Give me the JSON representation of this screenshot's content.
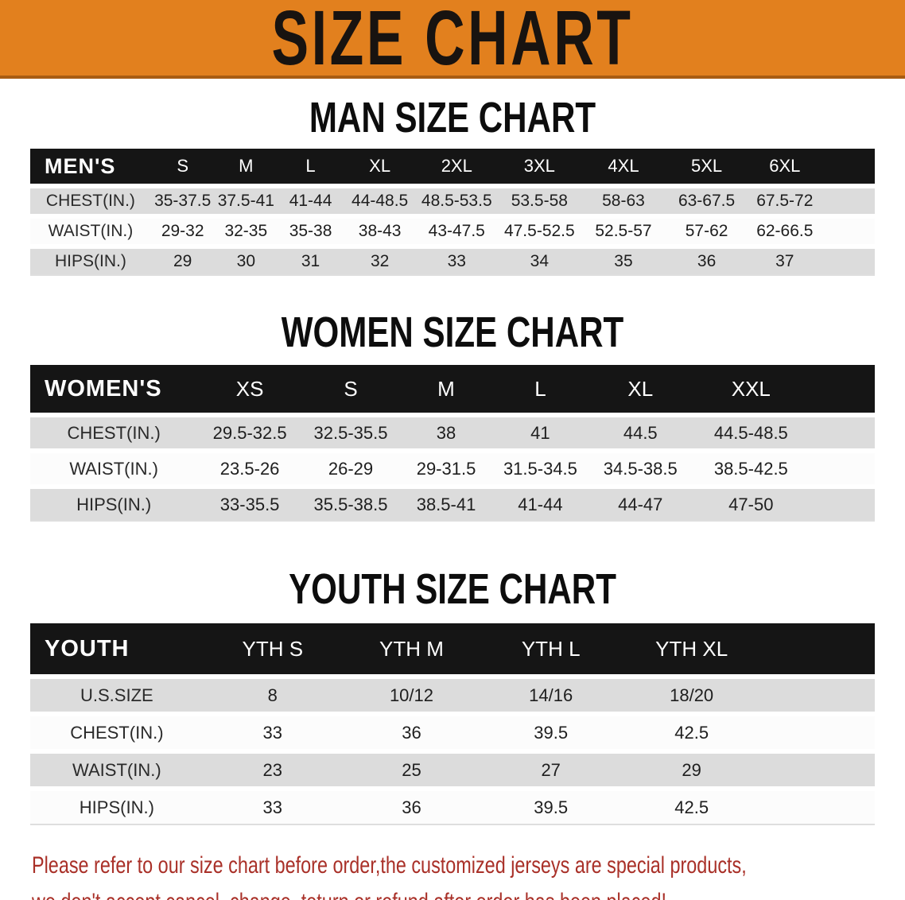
{
  "banner": {
    "title": "SIZE CHART"
  },
  "colors": {
    "banner_bg": "#e2801e",
    "table_header_bg": "#151515",
    "row_stripe_gray": "#dcdcdc",
    "notice_text_red": "#a93028"
  },
  "sections": [
    {
      "heading": "MAN SIZE CHART",
      "header_label": "MEN'S",
      "columns": [
        "S",
        "M",
        "L",
        "XL",
        "2XL",
        "3XL",
        "4XL",
        "5XL",
        "6XL"
      ],
      "rows": [
        {
          "label": "CHEST(IN.)",
          "values": [
            "35-37.5",
            "37.5-41",
            "41-44",
            "44-48.5",
            "48.5-53.5",
            "53.5-58",
            "58-63",
            "63-67.5",
            "67.5-72"
          ]
        },
        {
          "label": "WAIST(IN.)",
          "values": [
            "29-32",
            "32-35",
            "35-38",
            "38-43",
            "43-47.5",
            "47.5-52.5",
            "52.5-57",
            "57-62",
            "62-66.5"
          ]
        },
        {
          "label": "HIPS(IN.)",
          "values": [
            "29",
            "30",
            "31",
            "32",
            "33",
            "34",
            "35",
            "36",
            "37"
          ]
        }
      ]
    },
    {
      "heading": "WOMEN SIZE CHART",
      "header_label": "WOMEN'S",
      "columns": [
        "XS",
        "S",
        "M",
        "L",
        "XL",
        "XXL"
      ],
      "rows": [
        {
          "label": "CHEST(IN.)",
          "values": [
            "29.5-32.5",
            "32.5-35.5",
            "38",
            "41",
            "44.5",
            "44.5-48.5"
          ]
        },
        {
          "label": "WAIST(IN.)",
          "values": [
            "23.5-26",
            "26-29",
            "29-31.5",
            "31.5-34.5",
            "34.5-38.5",
            "38.5-42.5"
          ]
        },
        {
          "label": "HIPS(IN.)",
          "values": [
            "33-35.5",
            "35.5-38.5",
            "38.5-41",
            "41-44",
            "44-47",
            "47-50"
          ]
        }
      ]
    },
    {
      "heading": "YOUTH SIZE CHART",
      "header_label": "YOUTH",
      "columns": [
        "YTH S",
        "YTH M",
        "YTH L",
        "YTH XL"
      ],
      "rows": [
        {
          "label": "U.S.SIZE",
          "values": [
            "8",
            "10/12",
            "14/16",
            "18/20"
          ]
        },
        {
          "label": "CHEST(IN.)",
          "values": [
            "33",
            "36",
            "39.5",
            "42.5"
          ]
        },
        {
          "label": "WAIST(IN.)",
          "values": [
            "23",
            "25",
            "27",
            "29"
          ]
        },
        {
          "label": "HIPS(IN.)",
          "values": [
            "33",
            "36",
            "39.5",
            "42.5"
          ]
        }
      ]
    }
  ],
  "footer": {
    "line1": "Please refer to our size chart before order,the customized jerseys are special products,",
    "line2": "we don't accept cancel, change, teturn or refund after order has been placed!"
  }
}
